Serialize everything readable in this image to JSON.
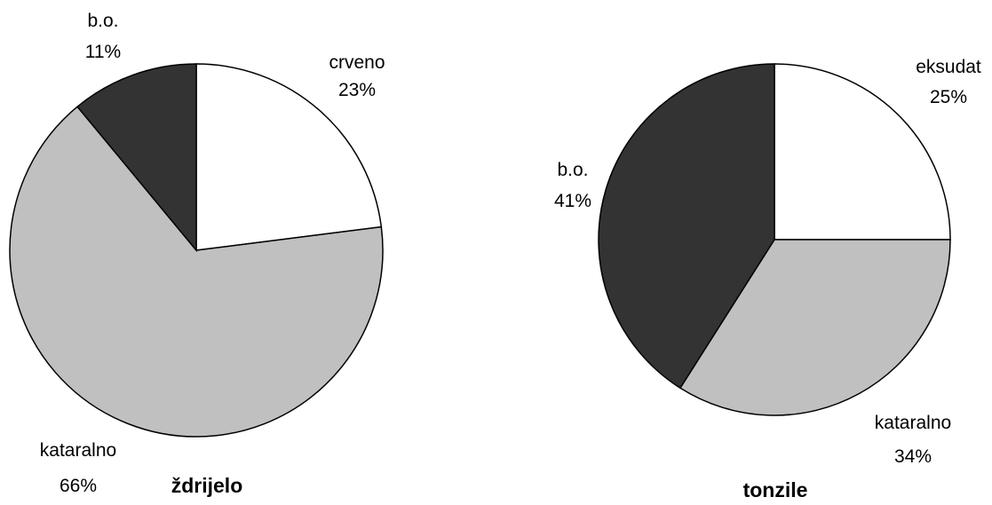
{
  "chart_data": [
    {
      "type": "pie",
      "title": "ždrijelo",
      "slices": [
        {
          "label": "crveno",
          "value": 23,
          "pct_label": "23%",
          "color": "#ffffff"
        },
        {
          "label": "kataralno",
          "value": 66,
          "pct_label": "66%",
          "color": "#c0c0c0"
        },
        {
          "label": "b.o.",
          "value": 11,
          "pct_label": "11%",
          "color": "#333333"
        }
      ],
      "start": "12 o'clock, clockwise"
    },
    {
      "type": "pie",
      "title": "tonzile",
      "slices": [
        {
          "label": "eksudat",
          "value": 25,
          "pct_label": "25%",
          "color": "#ffffff"
        },
        {
          "label": "kataralno",
          "value": 34,
          "pct_label": "34%",
          "color": "#c0c0c0"
        },
        {
          "label": "b.o.",
          "value": 41,
          "pct_label": "41%",
          "color": "#333333"
        }
      ],
      "start": "12 o'clock, clockwise"
    }
  ]
}
